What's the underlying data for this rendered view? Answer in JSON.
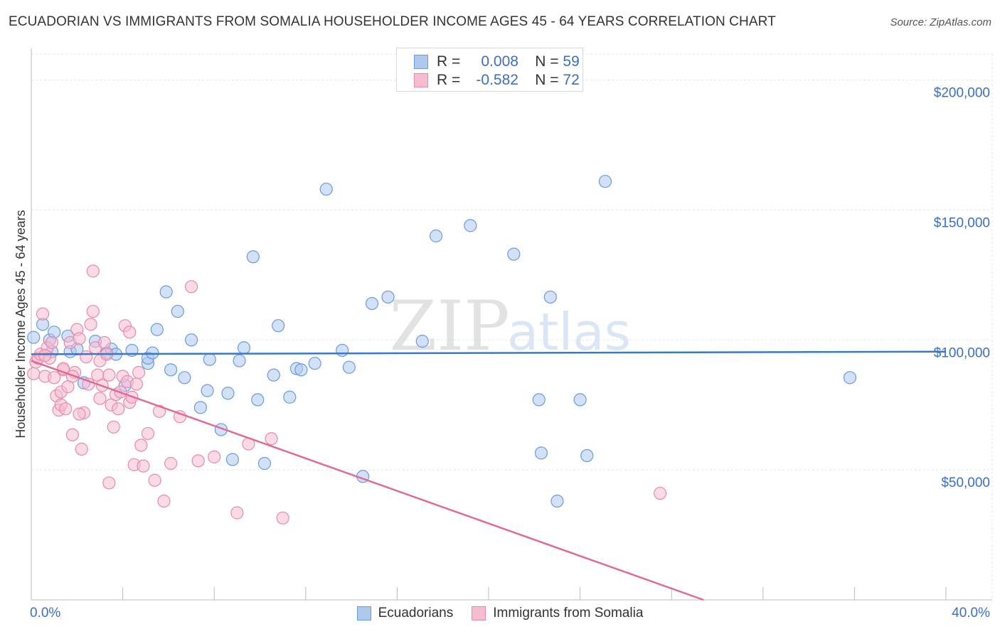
{
  "header": {
    "title": "ECUADORIAN VS IMMIGRANTS FROM SOMALIA HOUSEHOLDER INCOME AGES 45 - 64 YEARS CORRELATION CHART",
    "source": "Source: ZipAtlas.com"
  },
  "watermark": {
    "zip": "ZIP",
    "atlas": "atlas"
  },
  "legend_top": {
    "rows": [
      {
        "r_label": "R =",
        "r_value": "0.008",
        "n_label": "N =",
        "n_value": "59"
      },
      {
        "r_label": "R =",
        "r_value": "-0.582",
        "n_label": "N =",
        "n_value": "72"
      }
    ]
  },
  "bottom_legend": {
    "items": [
      {
        "label": "Ecuadorians"
      },
      {
        "label": "Immigrants from Somalia"
      }
    ]
  },
  "colors": {
    "blue_fill": "#aec8ee",
    "blue_stroke": "#6a9be0",
    "blue_line": "#3a78c9",
    "pink_fill": "#f6bcd0",
    "pink_stroke": "#e88aab",
    "pink_line": "#e06a95",
    "axis_text": "#3a6fc4",
    "grid": "#e5e5e5"
  },
  "chart_data": {
    "type": "scatter",
    "title": "ECUADORIAN VS IMMIGRANTS FROM SOMALIA HOUSEHOLDER INCOME AGES 45 - 64 YEARS CORRELATION CHART",
    "xlabel": "",
    "ylabel": "Householder Income Ages 45 - 64 years",
    "xlim": [
      0,
      40
    ],
    "ylim": [
      0,
      210000
    ],
    "x_tick_labels": [
      "0.0%",
      "40.0%"
    ],
    "y_ticks": [
      50000,
      100000,
      150000,
      200000
    ],
    "y_tick_labels": [
      "$50,000",
      "$100,000",
      "$150,000",
      "$200,000"
    ],
    "grid": true,
    "series": [
      {
        "name": "Ecuadorians",
        "r": 0.008,
        "n": 59,
        "trend": [
          [
            0,
            94500
          ],
          [
            40,
            95500
          ]
        ],
        "points": [
          [
            0.1,
            101000
          ],
          [
            0.5,
            106000
          ],
          [
            0.8,
            100000
          ],
          [
            0.9,
            95500
          ],
          [
            1.0,
            103000
          ],
          [
            1.6,
            101500
          ],
          [
            1.7,
            95500
          ],
          [
            2.0,
            96500
          ],
          [
            2.3,
            83500
          ],
          [
            2.8,
            99500
          ],
          [
            3.3,
            95000
          ],
          [
            3.5,
            96500
          ],
          [
            3.7,
            94500
          ],
          [
            4.1,
            82500
          ],
          [
            4.4,
            96000
          ],
          [
            5.1,
            91000
          ],
          [
            5.1,
            93000
          ],
          [
            5.3,
            95000
          ],
          [
            5.5,
            104000
          ],
          [
            5.9,
            118500
          ],
          [
            6.1,
            88500
          ],
          [
            6.4,
            111000
          ],
          [
            6.7,
            85500
          ],
          [
            7.0,
            100000
          ],
          [
            7.4,
            74000
          ],
          [
            7.7,
            80500
          ],
          [
            7.8,
            92500
          ],
          [
            8.3,
            65500
          ],
          [
            8.6,
            79500
          ],
          [
            8.8,
            54000
          ],
          [
            9.1,
            92000
          ],
          [
            9.3,
            97000
          ],
          [
            9.7,
            132000
          ],
          [
            9.9,
            77000
          ],
          [
            10.2,
            52500
          ],
          [
            10.6,
            86500
          ],
          [
            10.8,
            105500
          ],
          [
            11.3,
            78000
          ],
          [
            11.6,
            89000
          ],
          [
            11.8,
            88500
          ],
          [
            12.4,
            91000
          ],
          [
            12.9,
            158000
          ],
          [
            13.6,
            96000
          ],
          [
            13.9,
            89500
          ],
          [
            14.5,
            47500
          ],
          [
            14.9,
            114000
          ],
          [
            15.6,
            116500
          ],
          [
            17.1,
            99500
          ],
          [
            17.7,
            140000
          ],
          [
            19.2,
            144000
          ],
          [
            21.1,
            133000
          ],
          [
            22.2,
            77000
          ],
          [
            22.3,
            56500
          ],
          [
            22.7,
            116500
          ],
          [
            23.0,
            38000
          ],
          [
            24.0,
            77000
          ],
          [
            24.3,
            55500
          ],
          [
            25.1,
            161000
          ],
          [
            35.8,
            85500
          ]
        ]
      },
      {
        "name": "Immigrants from Somalia",
        "r": -0.582,
        "n": 72,
        "trend": [
          [
            0,
            92000
          ],
          [
            29.4,
            0
          ]
        ],
        "points": [
          [
            0.1,
            87000
          ],
          [
            0.2,
            91500
          ],
          [
            0.3,
            93000
          ],
          [
            0.4,
            94500
          ],
          [
            0.5,
            110000
          ],
          [
            0.6,
            86000
          ],
          [
            0.7,
            97000
          ],
          [
            0.8,
            93000
          ],
          [
            0.9,
            99000
          ],
          [
            1.0,
            85500
          ],
          [
            1.1,
            78500
          ],
          [
            1.2,
            73000
          ],
          [
            1.3,
            75000
          ],
          [
            1.3,
            80000
          ],
          [
            1.4,
            88500
          ],
          [
            1.5,
            73500
          ],
          [
            1.6,
            82000
          ],
          [
            1.7,
            99000
          ],
          [
            1.8,
            63500
          ],
          [
            1.9,
            87500
          ],
          [
            2.0,
            104000
          ],
          [
            2.1,
            100500
          ],
          [
            2.2,
            58000
          ],
          [
            2.3,
            72000
          ],
          [
            2.4,
            93500
          ],
          [
            2.5,
            83000
          ],
          [
            2.6,
            106000
          ],
          [
            2.7,
            111000
          ],
          [
            2.7,
            126500
          ],
          [
            2.8,
            97000
          ],
          [
            2.9,
            86500
          ],
          [
            3.0,
            92000
          ],
          [
            3.0,
            77500
          ],
          [
            3.2,
            99000
          ],
          [
            3.3,
            94500
          ],
          [
            3.4,
            45000
          ],
          [
            3.4,
            86500
          ],
          [
            3.5,
            75000
          ],
          [
            3.6,
            66500
          ],
          [
            3.7,
            79000
          ],
          [
            3.8,
            73500
          ],
          [
            3.9,
            80000
          ],
          [
            4.0,
            86000
          ],
          [
            4.1,
            105500
          ],
          [
            4.2,
            84000
          ],
          [
            4.3,
            76000
          ],
          [
            4.3,
            103000
          ],
          [
            4.4,
            78000
          ],
          [
            4.5,
            52000
          ],
          [
            4.6,
            83000
          ],
          [
            4.7,
            87500
          ],
          [
            4.8,
            59500
          ],
          [
            4.9,
            51500
          ],
          [
            5.1,
            64000
          ],
          [
            5.4,
            46000
          ],
          [
            5.6,
            72500
          ],
          [
            5.8,
            38000
          ],
          [
            6.1,
            52500
          ],
          [
            6.5,
            70500
          ],
          [
            7.0,
            120500
          ],
          [
            7.3,
            53500
          ],
          [
            8.0,
            55000
          ],
          [
            9.0,
            33500
          ],
          [
            9.5,
            60000
          ],
          [
            10.5,
            62000
          ],
          [
            11.0,
            31500
          ],
          [
            27.5,
            41000
          ],
          [
            0.6,
            94000
          ],
          [
            1.4,
            89000
          ],
          [
            2.1,
            71500
          ],
          [
            3.1,
            82500
          ],
          [
            1.8,
            86000
          ]
        ]
      }
    ]
  }
}
